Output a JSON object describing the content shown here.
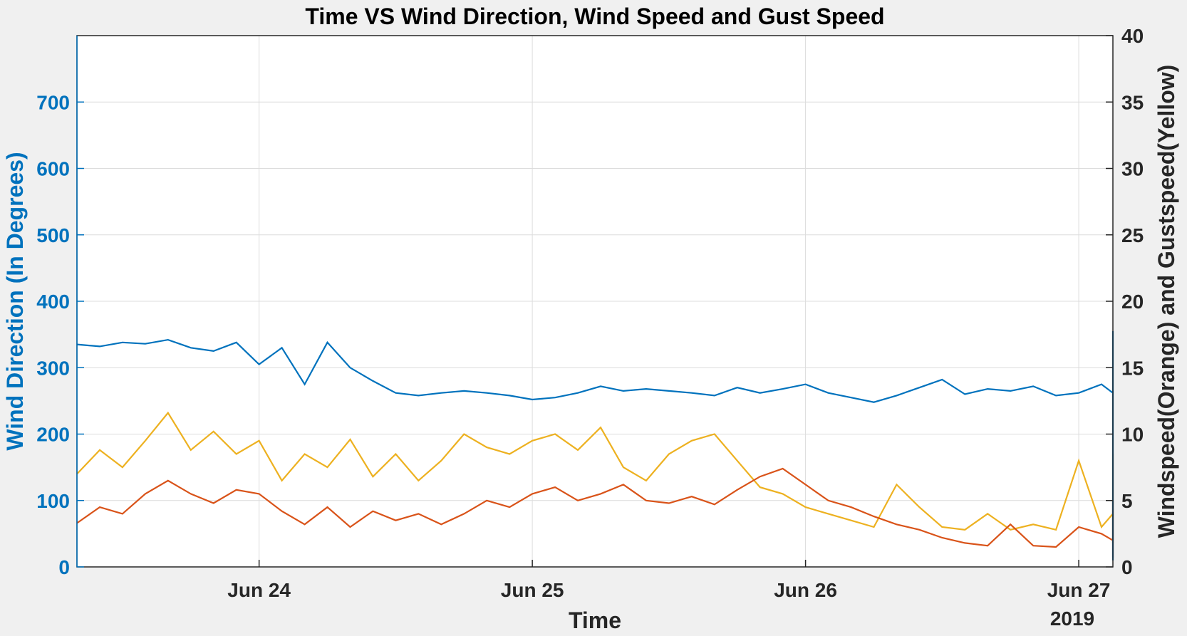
{
  "chart_data": {
    "type": "line",
    "title": "Time VS Wind Direction, Wind Speed and Gust Speed",
    "xlabel": "Time",
    "ylabel_left": "Wind Direction (In Degrees)",
    "ylabel_right": "Windspeed(Orange) and Gustspeed(Yellow)",
    "x_secondary_label": "2019",
    "x_range": [
      "2019-06-23 08:00",
      "2019-06-27 03:00"
    ],
    "x_ticks": [
      {
        "value": "2019-06-24 00:00",
        "label": "Jun 24"
      },
      {
        "value": "2019-06-25 00:00",
        "label": "Jun 25"
      },
      {
        "value": "2019-06-26 00:00",
        "label": "Jun 26"
      },
      {
        "value": "2019-06-27 00:00",
        "label": "Jun 27"
      }
    ],
    "ylim_left": [
      0,
      800
    ],
    "yticks_left": [
      0,
      100,
      200,
      300,
      400,
      500,
      600,
      700
    ],
    "ylim_right": [
      0,
      40
    ],
    "yticks_right": [
      0,
      5,
      10,
      15,
      20,
      25,
      30,
      35,
      40
    ],
    "grid": true,
    "colors": {
      "direction": "#0072bd",
      "windspeed": "#d95319",
      "gustspeed": "#edb120",
      "left_axis": "#0072bd",
      "right_axis": "#262626"
    },
    "series": [
      {
        "axis": "left",
        "points": [
          [
            "2019-06-23 08:00",
            335
          ],
          [
            "2019-06-23 09:00",
            330
          ],
          [
            "2019-06-23 10:00",
            338
          ],
          [
            "2019-06-23 11:00",
            332
          ],
          [
            "2019-06-23 12:00",
            342
          ],
          [
            "2019-06-23 13:00",
            336
          ],
          [
            "2019-06-23 14:00",
            325
          ],
          [
            "2019-06-23 15:00",
            338
          ],
          [
            "2019-06-23 16:00",
            330
          ],
          [
            "2019-06-23 17:00",
            305
          ],
          [
            "2019-06-23 18:00",
            325
          ],
          [
            "2019-06-23 19:00",
            275
          ],
          [
            "2019-06-23 20:00",
            338
          ],
          [
            "2019-06-23 21:00",
            300
          ],
          [
            "2019-06-23 22:00",
            335
          ],
          [
            "2019-06-23 23:00",
            280
          ],
          [
            "2019-06-24 00:00",
            270
          ],
          [
            "2019-06-23 24:00",
            270
          ],
          [
            "2019-06-23 13:30",
            262
          ],
          [
            "2019-06-23 14:30",
            258
          ]
        ]
      }
    ]
  }
}
